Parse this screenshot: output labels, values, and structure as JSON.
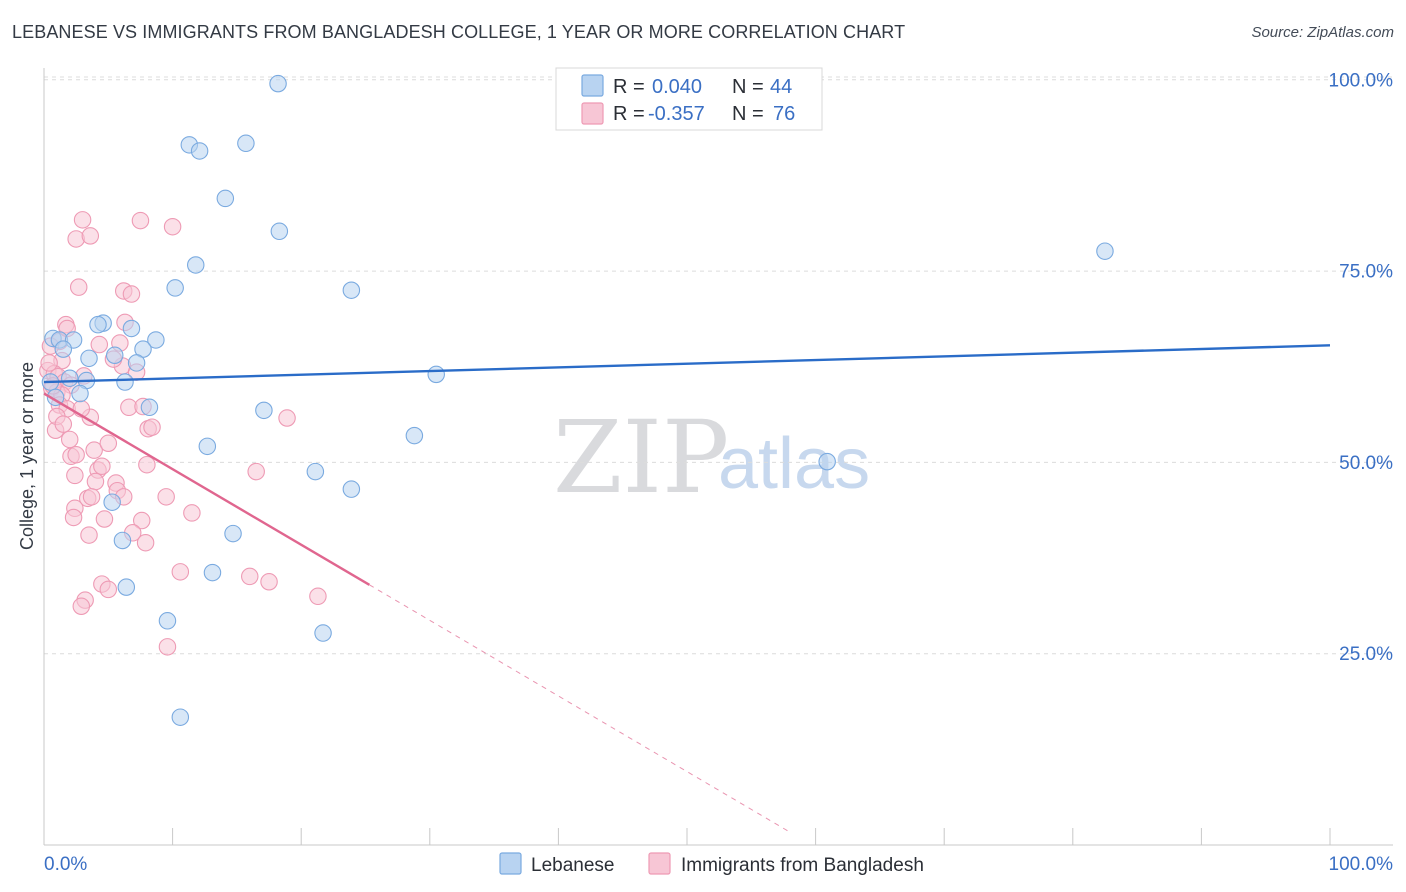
{
  "title": "LEBANESE VS IMMIGRANTS FROM BANGLADESH COLLEGE, 1 YEAR OR MORE CORRELATION CHART",
  "source": "Source: ZipAtlas.com",
  "watermark": {
    "zip": "ZIP",
    "atlas": "atlas"
  },
  "colors": {
    "blue_fill": "#b8d3f1",
    "blue_stroke": "#7aaae0",
    "blue_line": "#2a6cc8",
    "pink_fill": "#f7c6d5",
    "pink_stroke": "#ee9ab4",
    "pink_line": "#e0668f",
    "grid": "#dcdcdc",
    "tick_text": "#3a6fc4"
  },
  "legend": {
    "rows": [
      {
        "r_label": "R =",
        "r_value": "0.040",
        "n_label": "N =",
        "n_value": "44"
      },
      {
        "r_label": "R =",
        "r_value": "-0.357",
        "n_label": "N =",
        "n_value": "76"
      }
    ]
  },
  "chart_data": {
    "type": "scatter",
    "ylabel": "College, 1 year or more",
    "xlabel": "",
    "xlim": [
      0,
      100
    ],
    "ylim": [
      0,
      102
    ],
    "x_tick_labels": [
      "0.0%",
      "100.0%"
    ],
    "y_tick_labels": [
      "25.0%",
      "50.0%",
      "75.0%",
      "100.0%"
    ],
    "y_ticks": [
      25,
      50,
      75,
      100
    ],
    "series": [
      {
        "name": "Lebanese",
        "color": "blue",
        "trend": {
          "x0": 0,
          "y0": 60.5,
          "x1": 100,
          "y1": 65.3,
          "dash_x1": 100
        },
        "points": [
          [
            18.2,
            99.5
          ],
          [
            11.3,
            91.5
          ],
          [
            12.1,
            90.7
          ],
          [
            15.7,
            91.7
          ],
          [
            14.1,
            84.5
          ],
          [
            18.3,
            80.2
          ],
          [
            11.8,
            75.8
          ],
          [
            10.2,
            72.8
          ],
          [
            23.9,
            72.5
          ],
          [
            82.5,
            77.6
          ],
          [
            0.7,
            66.2
          ],
          [
            1.2,
            66.0
          ],
          [
            2.3,
            66.0
          ],
          [
            4.6,
            68.2
          ],
          [
            6.8,
            67.5
          ],
          [
            8.7,
            66.0
          ],
          [
            7.7,
            64.8
          ],
          [
            1.5,
            64.8
          ],
          [
            3.5,
            63.6
          ],
          [
            5.5,
            64.0
          ],
          [
            7.2,
            63.0
          ],
          [
            3.3,
            60.7
          ],
          [
            6.3,
            60.5
          ],
          [
            2.8,
            59.0
          ],
          [
            30.5,
            61.5
          ],
          [
            8.2,
            57.2
          ],
          [
            17.1,
            56.8
          ],
          [
            28.8,
            53.5
          ],
          [
            12.7,
            52.1
          ],
          [
            21.1,
            48.8
          ],
          [
            60.9,
            50.1
          ],
          [
            23.9,
            46.5
          ],
          [
            5.3,
            44.8
          ],
          [
            6.1,
            39.8
          ],
          [
            14.7,
            40.7
          ],
          [
            13.1,
            35.6
          ],
          [
            6.4,
            33.7
          ],
          [
            9.6,
            29.3
          ],
          [
            21.7,
            27.7
          ],
          [
            10.6,
            16.7
          ],
          [
            0.5,
            60.5
          ],
          [
            2.0,
            61.0
          ],
          [
            0.9,
            58.5
          ],
          [
            4.2,
            68.0
          ]
        ]
      },
      {
        "name": "Immigrants from Bangladesh",
        "color": "pink",
        "trend": {
          "x0": 0,
          "y0": 59.0,
          "x1": 25.3,
          "y1": 34.0,
          "dash_x1": 58.0
        },
        "points": [
          [
            3.0,
            81.7
          ],
          [
            7.5,
            81.6
          ],
          [
            10.0,
            80.8
          ],
          [
            2.5,
            79.2
          ],
          [
            3.6,
            79.6
          ],
          [
            2.7,
            72.9
          ],
          [
            6.2,
            72.4
          ],
          [
            6.8,
            72.0
          ],
          [
            1.7,
            68.0
          ],
          [
            6.3,
            68.3
          ],
          [
            1.2,
            65.8
          ],
          [
            4.3,
            65.4
          ],
          [
            5.9,
            65.6
          ],
          [
            0.5,
            65.2
          ],
          [
            1.4,
            63.3
          ],
          [
            0.3,
            62.0
          ],
          [
            0.8,
            61.6
          ],
          [
            1.1,
            61.2
          ],
          [
            1.6,
            60.5
          ],
          [
            2.1,
            60.1
          ],
          [
            0.6,
            59.7
          ],
          [
            1.0,
            59.2
          ],
          [
            1.4,
            58.8
          ],
          [
            3.1,
            61.3
          ],
          [
            6.1,
            62.6
          ],
          [
            5.4,
            63.5
          ],
          [
            1.2,
            57.5
          ],
          [
            1.8,
            57.0
          ],
          [
            6.6,
            57.2
          ],
          [
            7.7,
            57.3
          ],
          [
            0.9,
            54.2
          ],
          [
            3.6,
            55.9
          ],
          [
            8.1,
            54.4
          ],
          [
            8.4,
            54.6
          ],
          [
            18.9,
            55.8
          ],
          [
            2.1,
            50.8
          ],
          [
            2.5,
            51.0
          ],
          [
            3.9,
            51.6
          ],
          [
            2.4,
            48.3
          ],
          [
            4.2,
            49.0
          ],
          [
            4.5,
            49.5
          ],
          [
            8.0,
            49.7
          ],
          [
            16.5,
            48.8
          ],
          [
            4.0,
            47.5
          ],
          [
            5.6,
            47.3
          ],
          [
            5.7,
            46.3
          ],
          [
            3.4,
            45.3
          ],
          [
            3.7,
            45.5
          ],
          [
            6.2,
            45.5
          ],
          [
            9.5,
            45.5
          ],
          [
            2.4,
            44.0
          ],
          [
            11.5,
            43.4
          ],
          [
            2.3,
            42.8
          ],
          [
            4.7,
            42.6
          ],
          [
            7.6,
            42.4
          ],
          [
            3.5,
            40.5
          ],
          [
            6.9,
            40.8
          ],
          [
            7.9,
            39.5
          ],
          [
            10.6,
            35.7
          ],
          [
            16.0,
            35.1
          ],
          [
            17.5,
            34.4
          ],
          [
            4.5,
            34.1
          ],
          [
            5.0,
            33.4
          ],
          [
            3.2,
            32.0
          ],
          [
            21.3,
            32.5
          ],
          [
            2.9,
            31.2
          ],
          [
            9.6,
            25.9
          ],
          [
            1.0,
            56.0
          ],
          [
            2.0,
            53.0
          ],
          [
            0.4,
            63.0
          ],
          [
            1.8,
            67.5
          ],
          [
            7.2,
            61.8
          ],
          [
            0.7,
            60.0
          ],
          [
            1.5,
            55.0
          ],
          [
            2.9,
            57.0
          ],
          [
            5.0,
            52.5
          ]
        ]
      }
    ]
  }
}
